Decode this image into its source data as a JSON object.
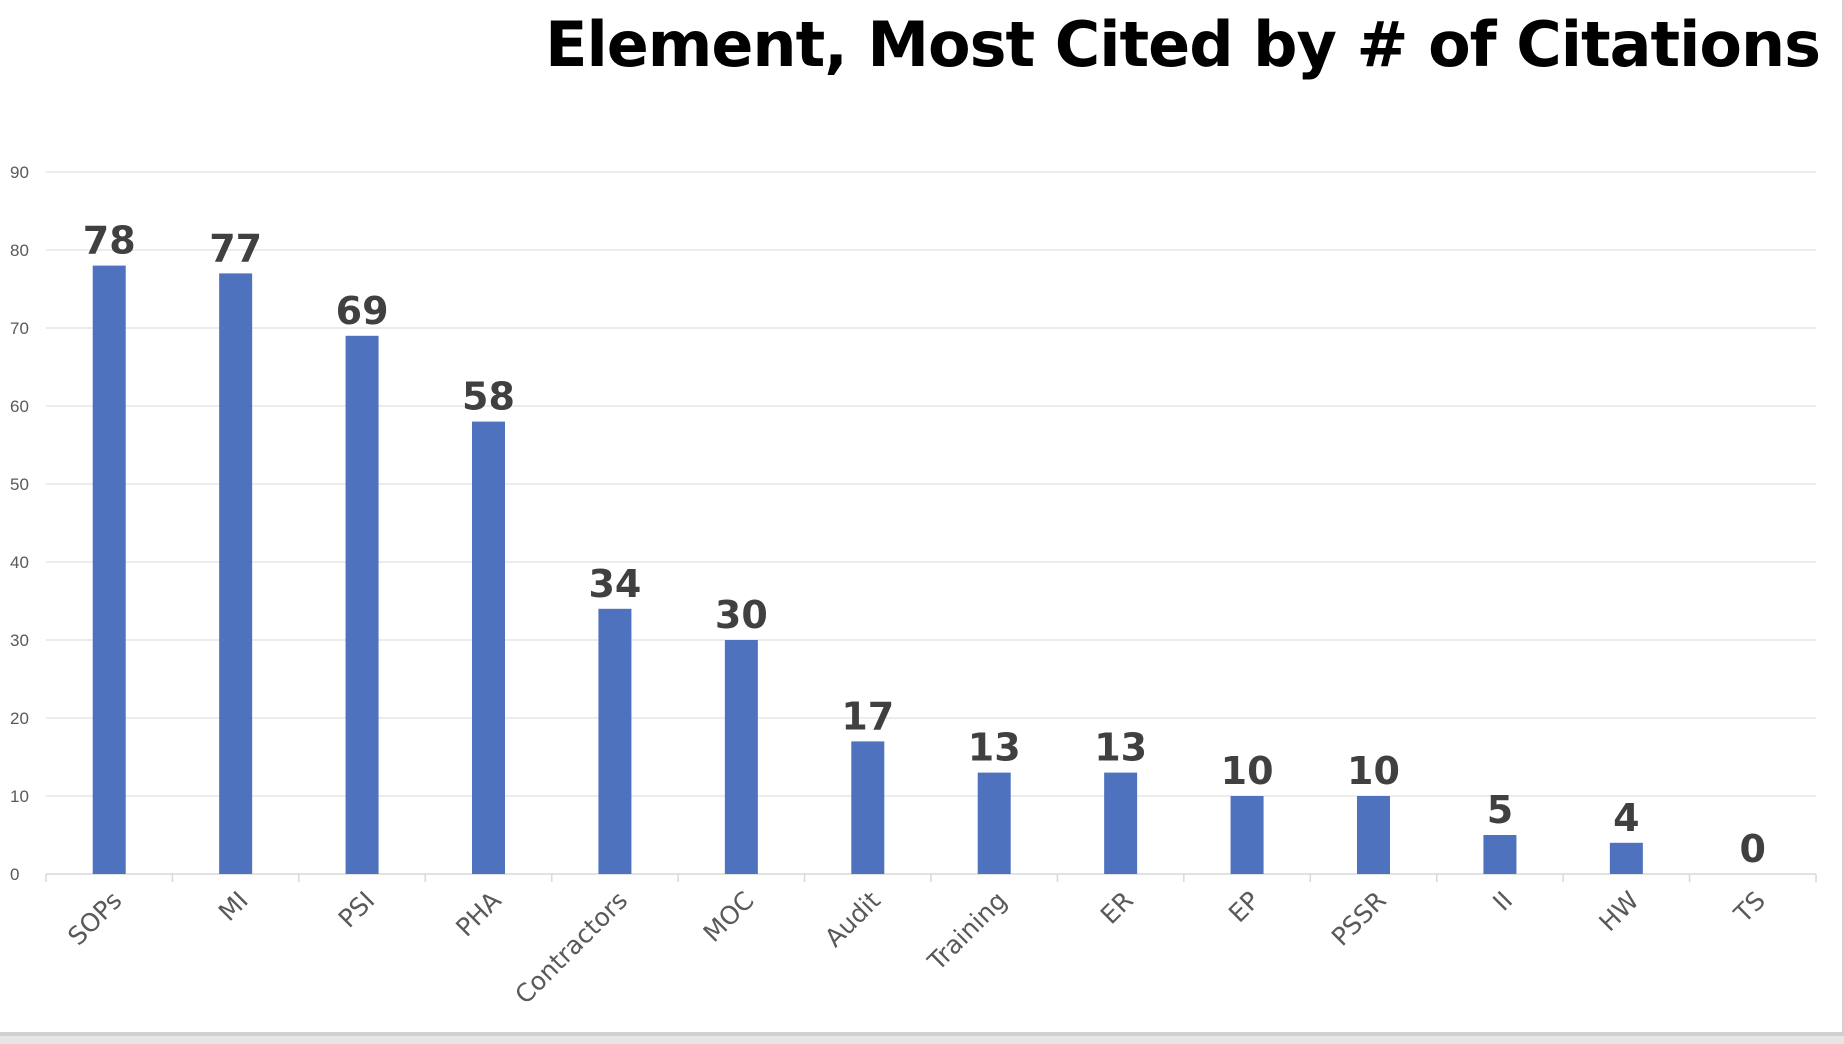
{
  "chart_data": {
    "type": "bar",
    "title": "Element, Most Cited by # of Citations",
    "xlabel": "",
    "ylabel": "",
    "categories": [
      "SOPs",
      "MI",
      "PSI",
      "PHA",
      "Contractors",
      "MOC",
      "Audit",
      "Training",
      "ER",
      "EP",
      "PSSR",
      "II",
      "HW",
      "TS"
    ],
    "values": [
      78,
      77,
      69,
      58,
      34,
      30,
      17,
      13,
      13,
      10,
      10,
      5,
      4,
      0
    ],
    "ylim": [
      0,
      90
    ],
    "yticks": [
      0,
      10,
      20,
      30,
      40,
      50,
      60,
      70,
      80,
      90
    ],
    "grid": true,
    "legend": "none",
    "bar_color": "#4F72BE",
    "data_labels": true
  }
}
